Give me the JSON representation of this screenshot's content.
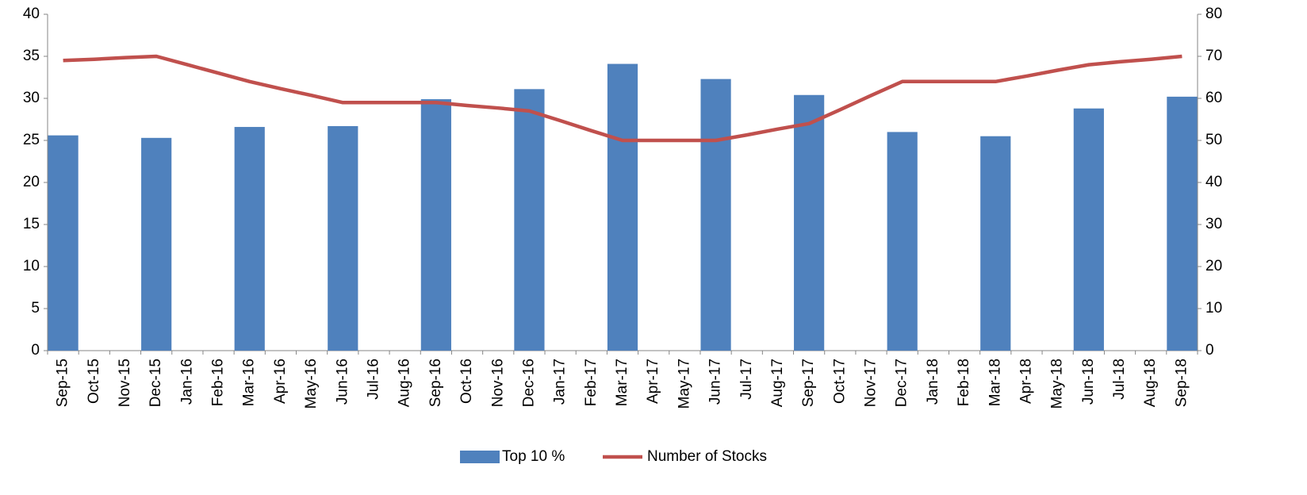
{
  "chart_data": {
    "type": "bar_line",
    "categories": [
      "Sep-15",
      "Oct-15",
      "Nov-15",
      "Dec-15",
      "Jan-16",
      "Feb-16",
      "Mar-16",
      "Apr-16",
      "May-16",
      "Jun-16",
      "Jul-16",
      "Aug-16",
      "Sep-16",
      "Oct-16",
      "Nov-16",
      "Dec-16",
      "Jan-17",
      "Feb-17",
      "Mar-17",
      "Apr-17",
      "May-17",
      "Jun-17",
      "Jul-17",
      "Aug-17",
      "Sep-17",
      "Oct-17",
      "Nov-17",
      "Dec-17",
      "Jan-18",
      "Feb-18",
      "Mar-18",
      "Apr-18",
      "May-18",
      "Jun-18",
      "Jul-18",
      "Aug-18",
      "Sep-18"
    ],
    "series": [
      {
        "name": "Top 10 %",
        "type": "bar",
        "color": "#4f81bd",
        "axis": "y",
        "values": [
          25.6,
          null,
          null,
          25.3,
          null,
          null,
          26.6,
          null,
          null,
          26.7,
          null,
          null,
          29.9,
          null,
          null,
          31.1,
          null,
          null,
          34.1,
          null,
          null,
          32.3,
          null,
          null,
          30.4,
          null,
          null,
          26.0,
          null,
          null,
          25.5,
          null,
          null,
          28.8,
          null,
          null,
          30.2
        ]
      },
      {
        "name": "Number of Stocks",
        "type": "line",
        "color": "#c0504d",
        "axis": "y2",
        "values": [
          69,
          69.3,
          69.7,
          70,
          68,
          66,
          64,
          62.3,
          60.7,
          59,
          59,
          59,
          59,
          58.3,
          57.7,
          57,
          54.7,
          52.3,
          50,
          50,
          50,
          50,
          51.3,
          52.7,
          54,
          57.3,
          60.7,
          64,
          64,
          64,
          64,
          65.3,
          66.7,
          68,
          68.7,
          69.3,
          70
        ]
      }
    ],
    "ylim": [
      0,
      40
    ],
    "yticks": [
      0,
      5,
      10,
      15,
      20,
      25,
      30,
      35,
      40
    ],
    "y2lim": [
      0,
      80
    ],
    "y2ticks": [
      0,
      10,
      20,
      30,
      40,
      50,
      60,
      70,
      80
    ],
    "grid": false,
    "legend": "bottom"
  }
}
